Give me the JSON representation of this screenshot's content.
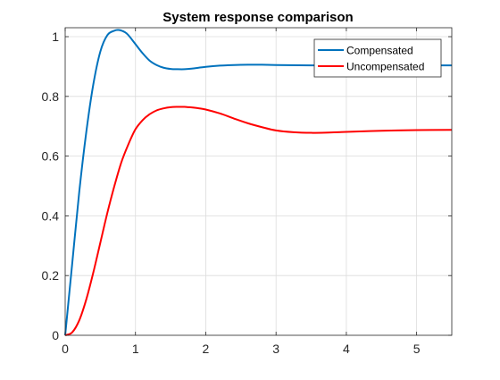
{
  "chart_data": {
    "type": "line",
    "title": "System response comparison",
    "xlabel": "",
    "ylabel": "",
    "xlim": [
      0,
      5.5
    ],
    "ylim": [
      0,
      1.03
    ],
    "xticks": [
      0,
      1,
      2,
      3,
      4,
      5
    ],
    "yticks": [
      0,
      0.2,
      0.4,
      0.6,
      0.8,
      1
    ],
    "xtick_labels": [
      "0",
      "1",
      "2",
      "3",
      "4",
      "5"
    ],
    "ytick_labels": [
      "0",
      "0.2",
      "0.4",
      "0.6",
      "0.8",
      "1"
    ],
    "grid": true,
    "legend_position": "top-right",
    "series": [
      {
        "name": "Compensated",
        "color": "#0072BD",
        "x": [
          0,
          0.1,
          0.2,
          0.3,
          0.4,
          0.5,
          0.6,
          0.7,
          0.77,
          0.85,
          0.9,
          1.0,
          1.1,
          1.2,
          1.3,
          1.4,
          1.5,
          1.6,
          1.7,
          1.8,
          2.0,
          2.2,
          2.4,
          2.6,
          2.8,
          3.0,
          3.5,
          4.0,
          4.5,
          5.0,
          5.5
        ],
        "y": [
          0,
          0.24,
          0.48,
          0.68,
          0.84,
          0.95,
          1.005,
          1.02,
          1.022,
          1.015,
          1.005,
          0.975,
          0.945,
          0.92,
          0.905,
          0.896,
          0.892,
          0.891,
          0.891,
          0.893,
          0.899,
          0.903,
          0.905,
          0.906,
          0.906,
          0.905,
          0.904,
          0.904,
          0.904,
          0.904,
          0.904
        ]
      },
      {
        "name": "Uncompensated",
        "color": "#FF0000",
        "x": [
          0,
          0.1,
          0.2,
          0.3,
          0.4,
          0.5,
          0.6,
          0.7,
          0.8,
          0.9,
          1.0,
          1.1,
          1.2,
          1.3,
          1.4,
          1.5,
          1.6,
          1.7,
          1.75,
          1.8,
          1.9,
          2.0,
          2.2,
          2.4,
          2.6,
          2.8,
          3.0,
          3.25,
          3.5,
          3.75,
          4.0,
          4.5,
          5.0,
          5.5
        ],
        "y": [
          0,
          0.01,
          0.05,
          0.12,
          0.21,
          0.31,
          0.41,
          0.5,
          0.58,
          0.64,
          0.69,
          0.72,
          0.74,
          0.753,
          0.76,
          0.764,
          0.765,
          0.765,
          0.764,
          0.763,
          0.76,
          0.756,
          0.743,
          0.726,
          0.71,
          0.697,
          0.686,
          0.68,
          0.678,
          0.679,
          0.681,
          0.685,
          0.687,
          0.688
        ]
      }
    ]
  }
}
